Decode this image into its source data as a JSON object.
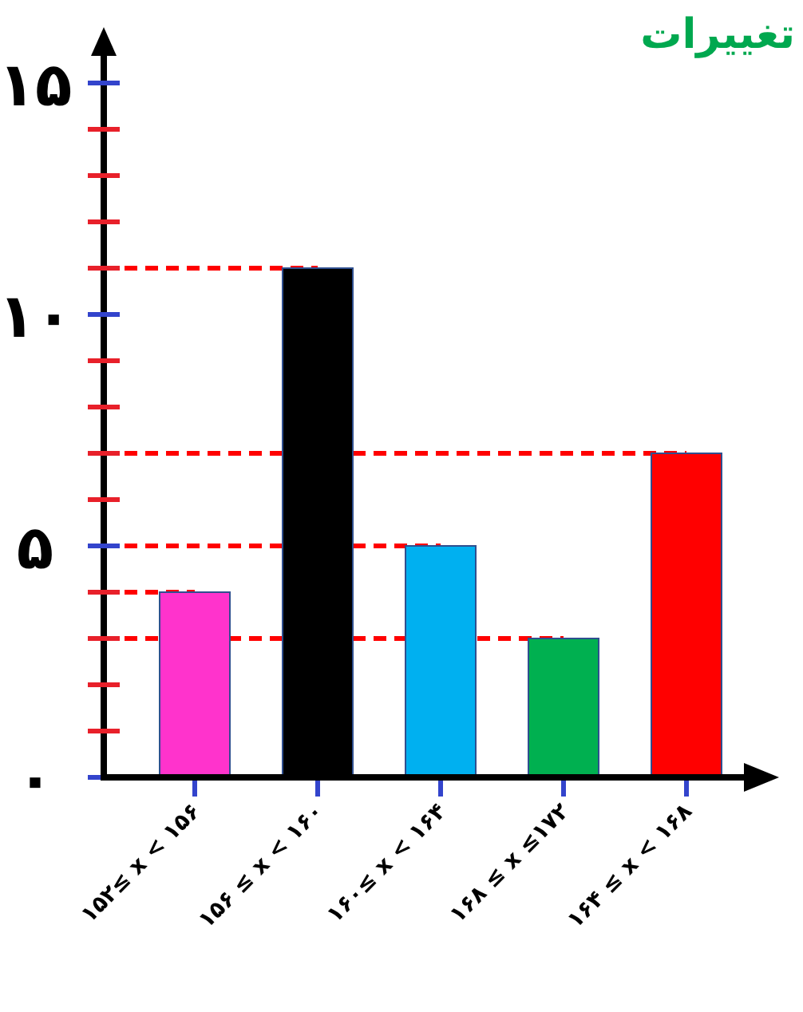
{
  "chart_data": {
    "type": "bar",
    "title": "تغییرات",
    "categories": [
      "۱۵۲≤ x < ۱۵۶",
      "۱۵۶ ≤ x < ۱۶۰",
      "۱۶۰≤ x < ۱۶۴",
      "۱۶۸ ≤ x ≤۱۷۲",
      "۱۶۴ ≤ x < ۱۶۸"
    ],
    "values": [
      4,
      11,
      5,
      3,
      7
    ],
    "colors": [
      "#ff33cc",
      "#000000",
      "#00b0f0",
      "#00b050",
      "#ff0000"
    ],
    "ylim": [
      0,
      16
    ],
    "yticks": [
      {
        "value": 0,
        "label": "۰"
      },
      {
        "value": 1,
        "label": null
      },
      {
        "value": 2,
        "label": null
      },
      {
        "value": 3,
        "label": null
      },
      {
        "value": 4,
        "label": null
      },
      {
        "value": 5,
        "label": "۵"
      },
      {
        "value": 6,
        "label": null
      },
      {
        "value": 7,
        "label": null
      },
      {
        "value": 8,
        "label": null
      },
      {
        "value": 9,
        "label": null
      },
      {
        "value": 10,
        "label": "۱۰"
      },
      {
        "value": 11,
        "label": null
      },
      {
        "value": 12,
        "label": null
      },
      {
        "value": 13,
        "label": null
      },
      {
        "value": 14,
        "label": null
      },
      {
        "value": 15,
        "label": "۱۵"
      }
    ],
    "ref_lines": [
      {
        "axis": "y",
        "value": 11,
        "color": "#ff0000",
        "line_style": "dashed"
      },
      {
        "axis": "y",
        "value": 7,
        "color": "#ff0000",
        "line_style": "dashed"
      },
      {
        "axis": "y",
        "value": 5,
        "color": "#ff0000",
        "line_style": "dashed"
      },
      {
        "axis": "y",
        "value": 4,
        "color": "#ff0000",
        "line_style": "dashed"
      },
      {
        "axis": "y",
        "value": 3,
        "color": "#ff0000",
        "line_style": "dashed"
      }
    ],
    "grid": false
  }
}
